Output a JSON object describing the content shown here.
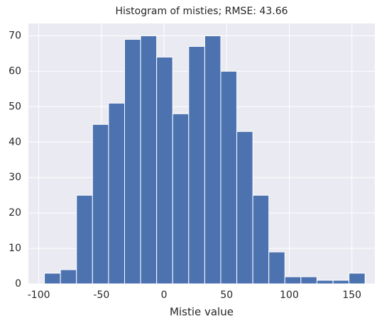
{
  "chart_data": {
    "type": "histogram",
    "title": "Histogram of misties; RMSE: 43.66",
    "x_label": "Mistie value",
    "bins": [
      -95.5,
      -82.7,
      -69.9,
      -57.1,
      -44.3,
      -31.5,
      -18.7,
      -5.9,
      6.9,
      19.7,
      32.5,
      45.3,
      58.1,
      70.9,
      83.7,
      96.5,
      109.3,
      122.1,
      134.9,
      147.7,
      160.5
    ],
    "values": [
      3,
      4,
      25,
      45,
      51,
      69,
      70,
      64,
      48,
      67,
      70,
      60,
      43,
      25,
      9,
      2,
      2,
      1,
      1,
      3
    ],
    "color": "#4c72b0",
    "xlim": [
      -108.3,
      168.3
    ],
    "xticks": [
      -100,
      -50,
      0,
      50,
      100,
      150
    ],
    "ylim": [
      0,
      73.5
    ],
    "yticks": [
      0,
      10,
      20,
      30,
      40,
      50,
      60,
      70
    ],
    "grid": true
  }
}
